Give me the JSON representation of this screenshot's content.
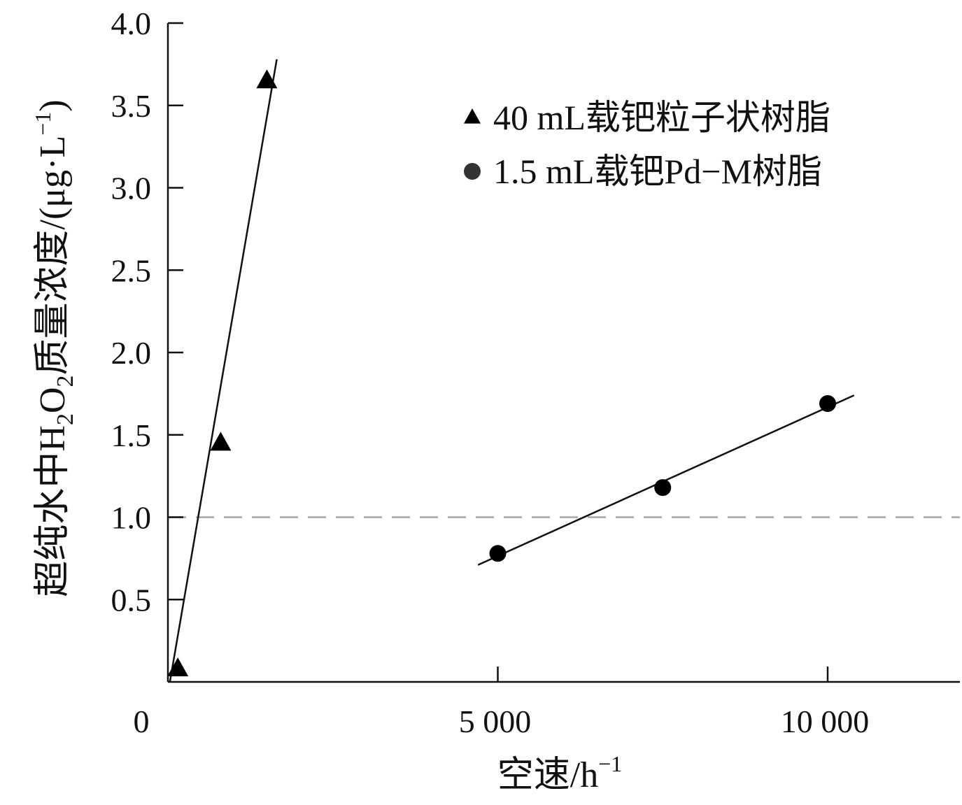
{
  "chart_data": {
    "type": "scatter",
    "xlabel": "空速/h",
    "xlabel_sup": "−1",
    "ylabel_parts": {
      "before": "超纯水中H",
      "sub1": "2",
      "mid": "O",
      "sub2": "2",
      "after": "质量浓度/(μg·L",
      "sup": "−1",
      "close": ")"
    },
    "xlim": [
      0,
      12000
    ],
    "ylim": [
      0,
      4.0
    ],
    "x_ticks": [
      {
        "value": 0,
        "label": "0"
      },
      {
        "value": 5000,
        "label": "5 000"
      },
      {
        "value": 10000,
        "label": "10 000"
      }
    ],
    "y_ticks": [
      {
        "value": 0.5,
        "label": "0.5"
      },
      {
        "value": 1.0,
        "label": "1.0"
      },
      {
        "value": 1.5,
        "label": "1.5"
      },
      {
        "value": 2.0,
        "label": "2.0"
      },
      {
        "value": 2.5,
        "label": "2.5"
      },
      {
        "value": 3.0,
        "label": "3.0"
      },
      {
        "value": 3.5,
        "label": "3.5"
      },
      {
        "value": 4.0,
        "label": "4.0"
      }
    ],
    "reference_line": {
      "y": 1.0,
      "style": "dashed",
      "color": "#a6a6a6"
    },
    "legend_position": "top-right",
    "series": [
      {
        "name": "40 mL载钯粒子状树脂",
        "marker": "triangle",
        "color": "#000000",
        "points": [
          [
            150,
            0.08
          ],
          [
            800,
            1.45
          ],
          [
            1500,
            3.65
          ]
        ],
        "fit_line": [
          [
            30,
            0.0
          ],
          [
            1650,
            3.78
          ]
        ]
      },
      {
        "name": "1.5 mL载钯Pd−M树脂",
        "marker": "circle",
        "color": "#000000",
        "points": [
          [
            5000,
            0.78
          ],
          [
            7500,
            1.18
          ],
          [
            10000,
            1.69
          ]
        ],
        "fit_line": [
          [
            4700,
            0.71
          ],
          [
            10400,
            1.74
          ]
        ]
      }
    ]
  }
}
